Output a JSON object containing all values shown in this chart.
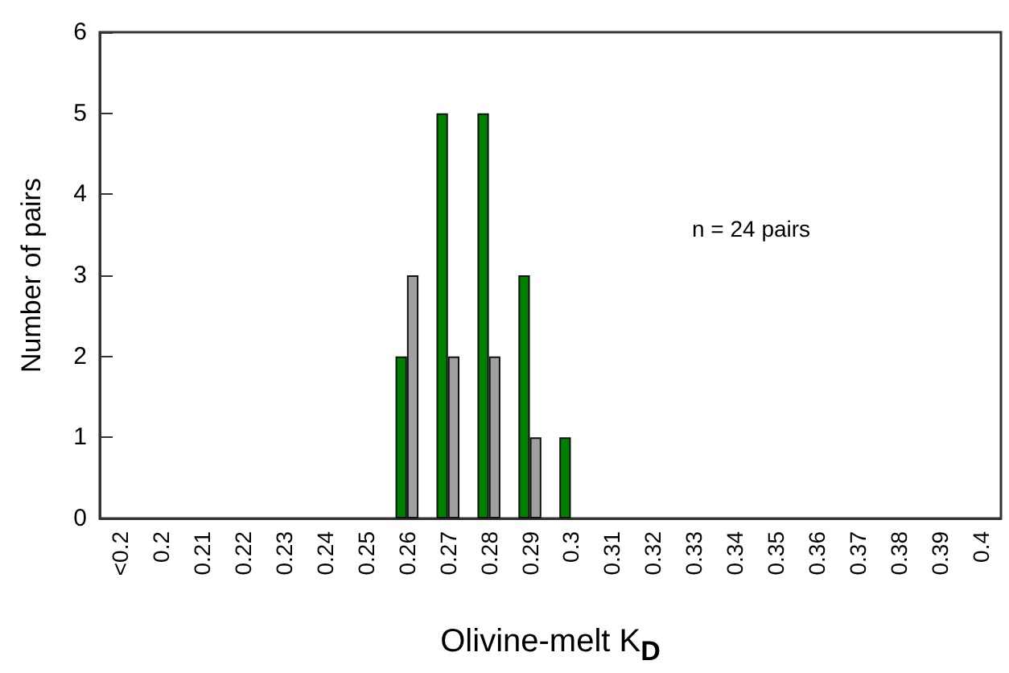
{
  "chart_data": {
    "type": "bar",
    "xlabel": "Olivine-melt K$_{D}$",
    "ylabel": "Number of pairs",
    "categories": [
      "<0.2",
      "0.2",
      "0.21",
      "0.22",
      "0.23",
      "0.24",
      "0.25",
      "0.26",
      "0.27",
      "0.28",
      "0.29",
      "0.3",
      "0.31",
      "0.32",
      "0.33",
      "0.34",
      "0.35",
      "0.36",
      "0.37",
      "0.38",
      "0.39",
      "0.4"
    ],
    "series": [
      {
        "color": "#008000",
        "values": [
          null,
          null,
          null,
          null,
          null,
          null,
          null,
          2,
          5,
          5,
          3,
          1,
          null,
          null,
          null,
          null,
          null,
          null,
          null,
          null,
          null,
          null
        ]
      },
      {
        "color": "#a0a0a0",
        "values": [
          null,
          null,
          null,
          null,
          null,
          null,
          null,
          3,
          2,
          2,
          1,
          null,
          null,
          null,
          null,
          null,
          null,
          null,
          null,
          null,
          null,
          null
        ]
      }
    ],
    "ylim": [
      0,
      6
    ],
    "yticks": [
      0,
      1,
      2,
      3,
      4,
      5,
      6
    ],
    "annotations": [
      "n = 24 pairs"
    ],
    "grid": false
  }
}
